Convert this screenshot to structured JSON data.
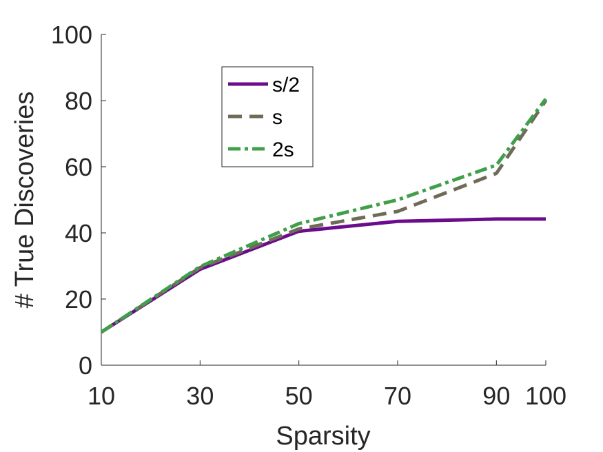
{
  "chart_data": {
    "type": "line",
    "title": "",
    "xlabel": "Sparsity",
    "ylabel": "# True Discoveries",
    "x": [
      10,
      30,
      50,
      70,
      90,
      100
    ],
    "xticks": [
      10,
      30,
      50,
      70,
      90,
      100
    ],
    "yticks": [
      0,
      20,
      40,
      60,
      80,
      100
    ],
    "xlim": [
      10,
      100
    ],
    "ylim": [
      0,
      100
    ],
    "grid": false,
    "legend_position": "top-left (inside axes)",
    "series": [
      {
        "name": "s/2",
        "values": [
          10,
          29,
          40.5,
          43.5,
          44.2,
          44.2
        ],
        "color": "#6a0c8c",
        "dash": "solid"
      },
      {
        "name": "s",
        "values": [
          10,
          29.5,
          41.2,
          46.5,
          58,
          80
        ],
        "color": "#6f6b57",
        "dash": "dashed"
      },
      {
        "name": "2s",
        "values": [
          10,
          29.8,
          42.8,
          50,
          60.5,
          80.5
        ],
        "color": "#3f9f4a",
        "dash": "dashdot"
      }
    ]
  }
}
